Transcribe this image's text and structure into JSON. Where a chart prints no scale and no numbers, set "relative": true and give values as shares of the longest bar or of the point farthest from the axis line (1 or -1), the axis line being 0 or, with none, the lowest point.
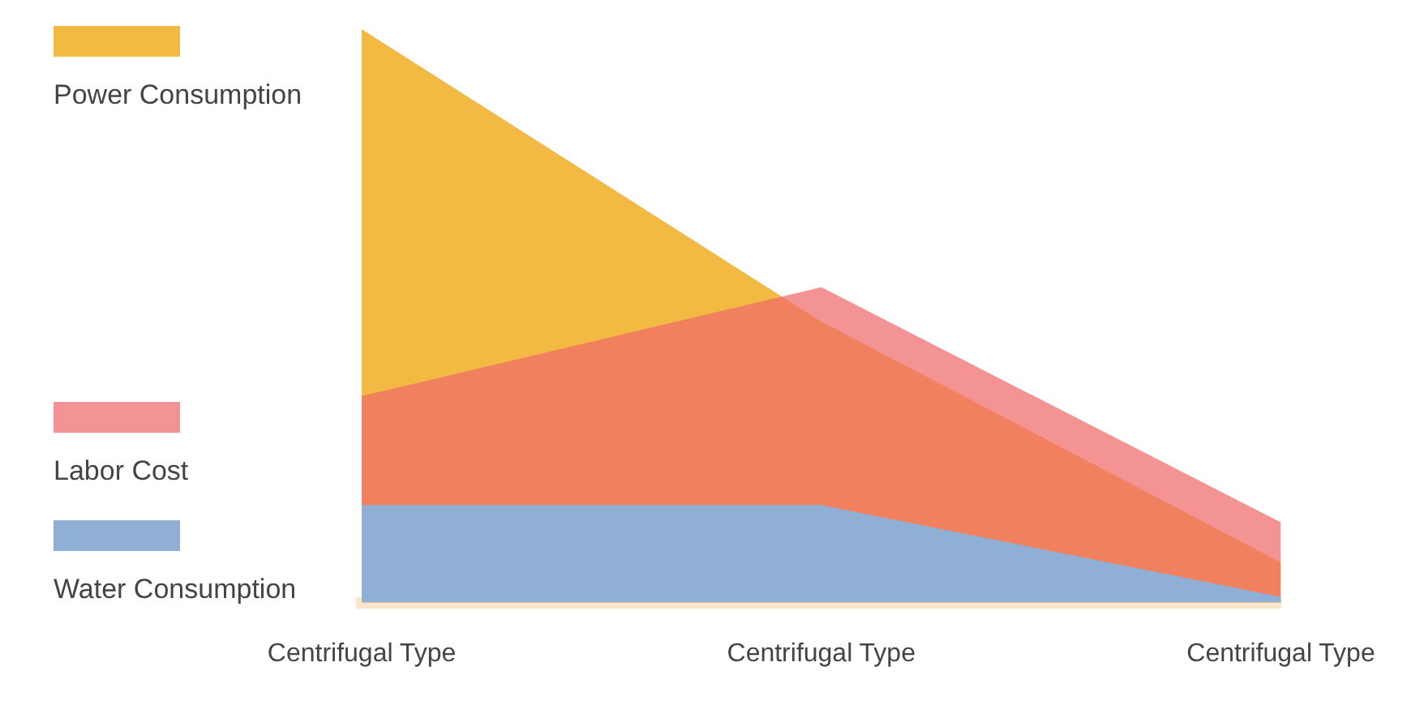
{
  "chart_data": {
    "type": "area",
    "relative": true,
    "categories": [
      "Centrifugal Type",
      "Centrifugal Type",
      "Centrifugal Type"
    ],
    "legend": "left",
    "grid": false,
    "series": [
      {
        "name": "Power Consumption",
        "color": "#f2b943",
        "values": [
          1,
          0.49,
          0.07
        ]
      },
      {
        "name": "Labor Cost",
        "color": "#f06a6a",
        "values": [
          0.36,
          0.55,
          0.14
        ]
      },
      {
        "name": "Water Consumption",
        "color": "#8fb0d4",
        "values": [
          0.17,
          0.17,
          0.01
        ]
      }
    ]
  }
}
